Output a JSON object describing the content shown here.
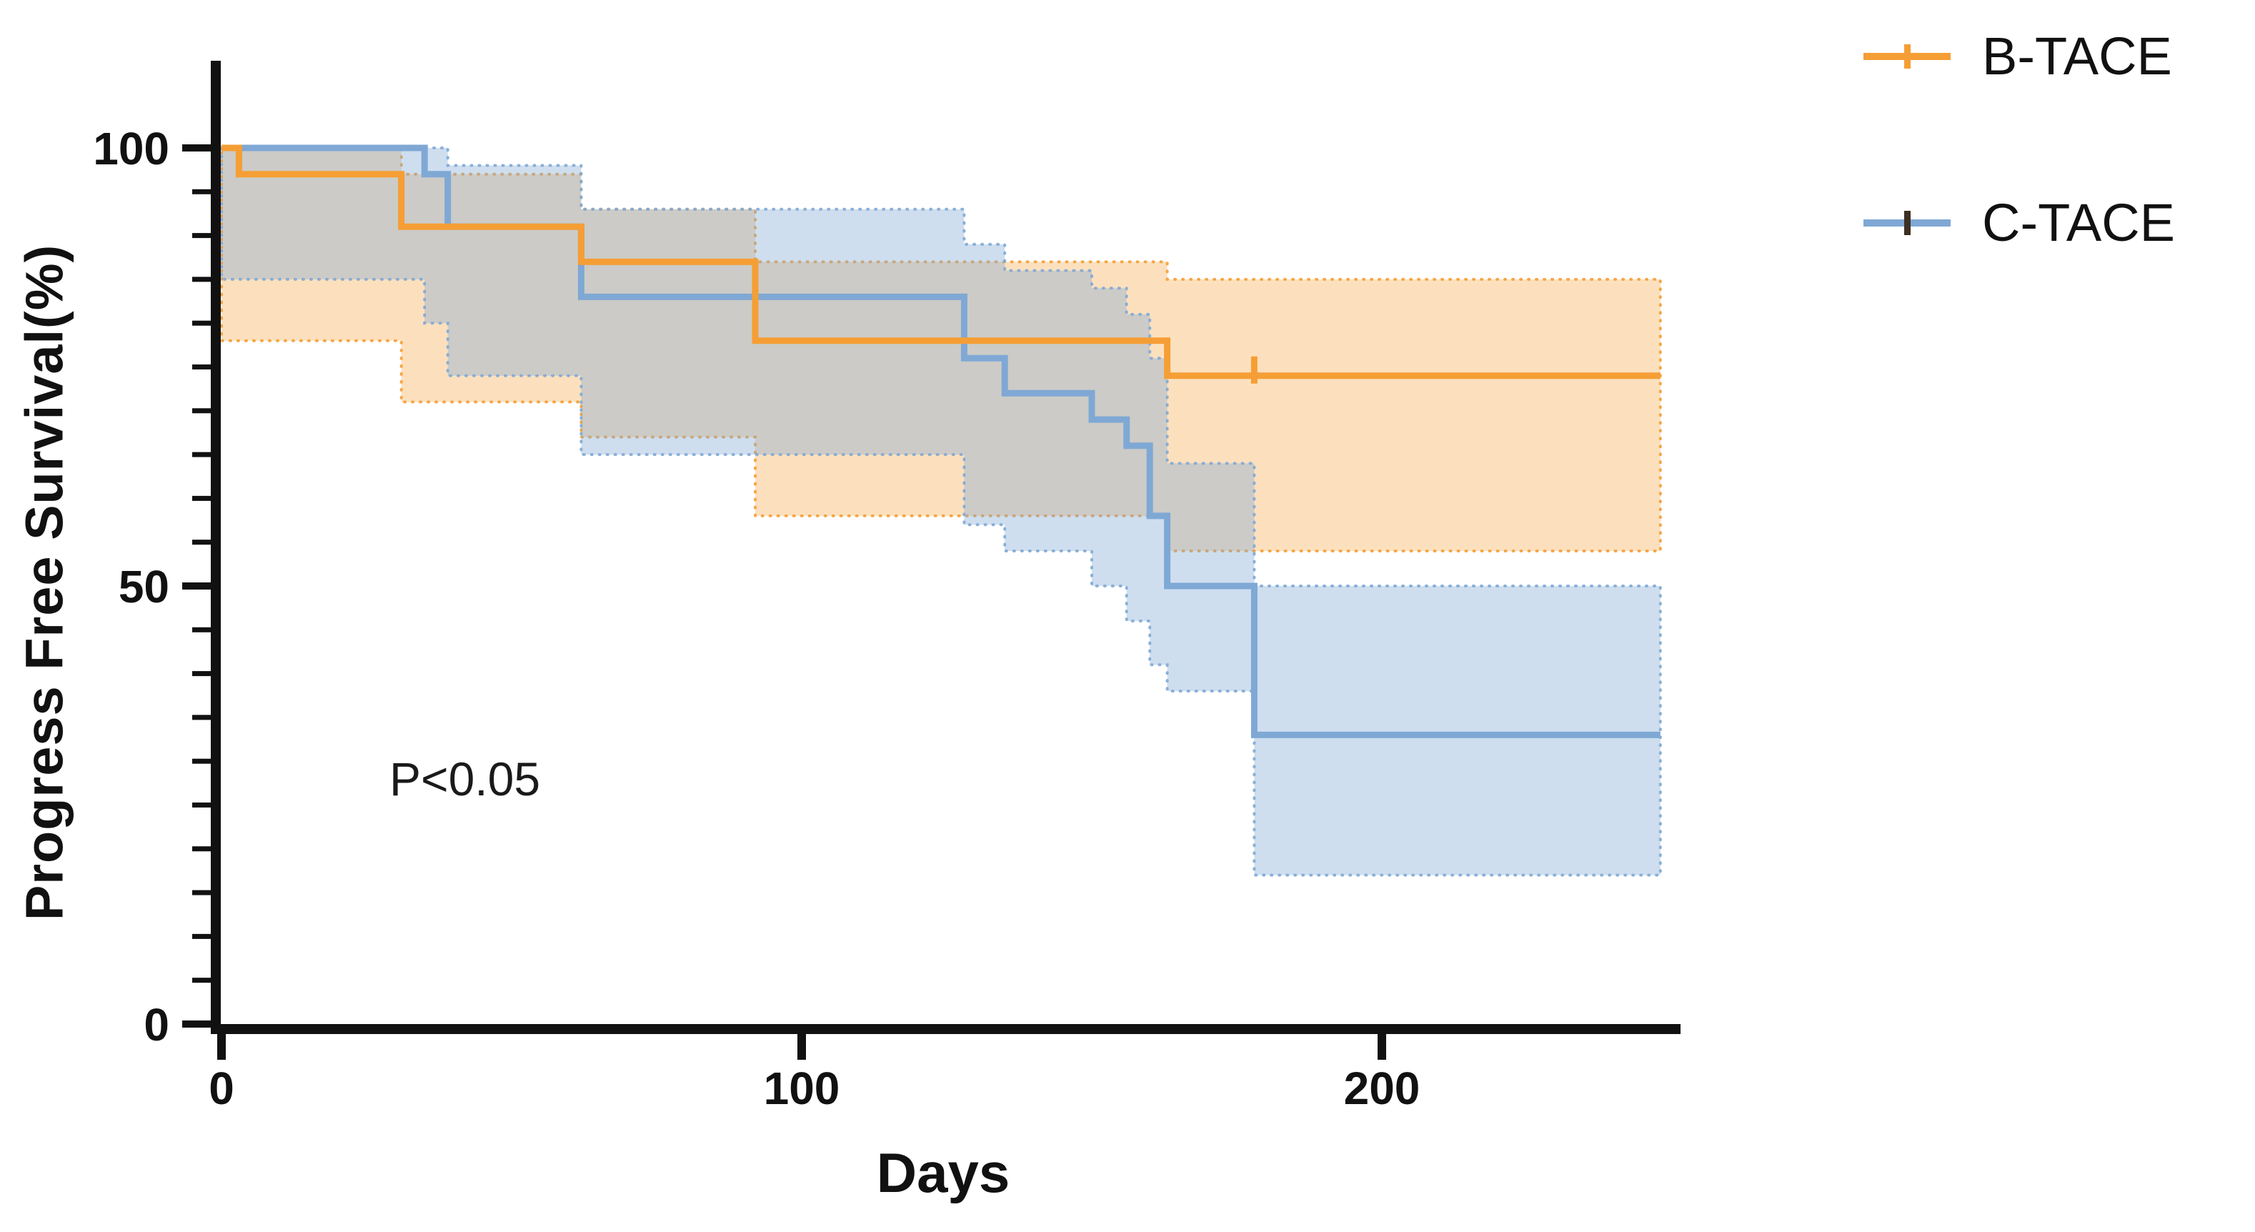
{
  "chart_data": {
    "type": "line",
    "subtype": "kaplan-meier-step",
    "title": "",
    "xlabel": "Days",
    "ylabel": "Progress Free Survival(%)",
    "annotation": "P<0.05",
    "xlim": [
      0,
      250
    ],
    "ylim": [
      0,
      100
    ],
    "x_ticks": [
      0,
      100,
      200
    ],
    "y_ticks": [
      0,
      50,
      100
    ],
    "y_minor_tick_step": 5,
    "grid": false,
    "legend_position": "top-right",
    "axis_color": "#111111",
    "series": [
      {
        "name": "B-TACE",
        "color": "#F59E35",
        "band_opacity": 0.32,
        "legend_tick_color": "#F59E35",
        "steps": [
          [
            0,
            100
          ],
          [
            3,
            97
          ],
          [
            31,
            91
          ],
          [
            62,
            87
          ],
          [
            92,
            78
          ],
          [
            163,
            74
          ],
          [
            248,
            74
          ]
        ],
        "censor_marks": [
          [
            178,
            74
          ]
        ],
        "ci_band": [
          [
            0,
            78,
            100
          ],
          [
            31,
            71,
            97
          ],
          [
            62,
            67,
            93
          ],
          [
            92,
            58,
            87
          ],
          [
            163,
            54,
            85
          ],
          [
            248,
            54,
            85
          ]
        ]
      },
      {
        "name": "C-TACE",
        "color": "#7FA8D5",
        "band_opacity": 0.38,
        "legend_tick_color": "#3E2F23",
        "steps": [
          [
            0,
            100
          ],
          [
            35,
            97
          ],
          [
            39,
            91
          ],
          [
            62,
            83
          ],
          [
            128,
            76
          ],
          [
            135,
            72
          ],
          [
            150,
            69
          ],
          [
            156,
            66
          ],
          [
            160,
            58
          ],
          [
            163,
            50
          ],
          [
            178,
            33
          ],
          [
            248,
            33
          ]
        ],
        "censor_marks": [],
        "ci_band": [
          [
            0,
            85,
            100
          ],
          [
            35,
            80,
            100
          ],
          [
            39,
            74,
            98
          ],
          [
            62,
            65,
            93
          ],
          [
            128,
            57,
            89
          ],
          [
            135,
            54,
            86
          ],
          [
            150,
            50,
            84
          ],
          [
            156,
            46,
            81
          ],
          [
            160,
            41,
            76
          ],
          [
            163,
            38,
            64
          ],
          [
            178,
            17,
            50
          ],
          [
            248,
            17,
            50
          ]
        ]
      }
    ]
  }
}
